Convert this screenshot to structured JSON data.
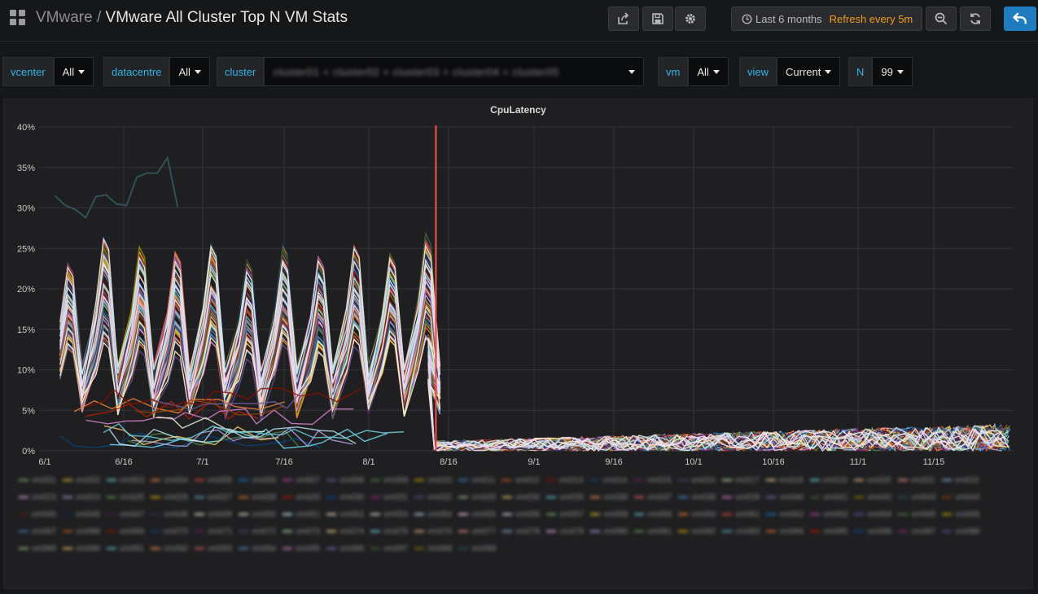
{
  "header": {
    "breadcrumb_folder": "VMware",
    "separator": " / ",
    "dashboard_title": "VMware All Cluster Top N VM Stats",
    "time_range": "Last 6 months",
    "refresh": "Refresh every 5m",
    "icons": [
      "share-icon",
      "save-icon",
      "settings-icon",
      "clock-icon",
      "zoom-out-icon",
      "refresh-icon",
      "back-icon"
    ]
  },
  "variables": [
    {
      "label": "vcenter",
      "value": "All"
    },
    {
      "label": "datacentre",
      "value": "All"
    },
    {
      "label": "cluster",
      "value": "cluster01 + cluster02 + cluster03 + cluster04 + cluster05"
    },
    {
      "label": "vm",
      "value": "All"
    },
    {
      "label": "view",
      "value": "Current"
    },
    {
      "label": "N",
      "value": "99"
    }
  ],
  "panel": {
    "title": "CpuLatency"
  },
  "chart_data": {
    "type": "line",
    "title": "CpuLatency",
    "y_ticks": [
      "0%",
      "5%",
      "10%",
      "15%",
      "20%",
      "25%",
      "30%",
      "35%",
      "40%"
    ],
    "ylim": [
      0,
      40
    ],
    "x_ticks": [
      "6/1",
      "6/16",
      "7/1",
      "7/16",
      "8/1",
      "8/16",
      "9/1",
      "9/16",
      "10/1",
      "10/16",
      "11/1",
      "11/15"
    ],
    "annotation": {
      "x": "8/17",
      "color": "#e84c4c"
    },
    "grid": true,
    "legend_position": "bottom",
    "series_note": "Approximately 99 VM series; names are blurred in the screenshot",
    "dominant_series": {
      "x": [
        "6/3",
        "6/4",
        "6/5",
        "6/6",
        "6/7",
        "6/8",
        "6/9",
        "6/10",
        "6/11",
        "6/12",
        "6/13",
        "6/14",
        "6/15",
        "6/16",
        "6/17",
        "6/18",
        "6/19",
        "6/20",
        "6/21",
        "6/22",
        "6/23",
        "6/24",
        "6/25",
        "6/26",
        "6/27",
        "6/28",
        "6/29",
        "6/30",
        "7/1",
        "7/2",
        "7/3",
        "7/4",
        "7/5",
        "7/6",
        "7/7",
        "7/8",
        "7/9",
        "7/10",
        "7/11",
        "7/12",
        "7/13",
        "7/14",
        "7/15",
        "7/16",
        "7/17",
        "7/18",
        "7/19",
        "7/20",
        "7/21",
        "7/22",
        "7/23",
        "7/24",
        "7/25",
        "7/26",
        "7/27",
        "7/28",
        "7/29",
        "7/30",
        "7/31",
        "8/1",
        "8/2",
        "8/3",
        "8/4",
        "8/5",
        "8/6",
        "8/7",
        "8/8",
        "8/9",
        "8/10",
        "8/11",
        "8/12",
        "8/13",
        "8/14",
        "8/15",
        "8/16",
        "8/17"
      ],
      "peaks_percent": [
        22,
        25,
        24,
        23,
        24,
        22,
        24,
        23,
        24,
        23,
        25,
        23
      ],
      "troughs_percent": [
        10,
        10,
        10,
        10,
        10,
        10,
        10,
        10,
        10,
        10,
        10
      ],
      "after_annotation_range_percent": [
        0,
        3
      ]
    },
    "outlier_series": {
      "x": [
        "6/3",
        "6/5",
        "6/7",
        "6/9",
        "6/11",
        "6/13",
        "6/15",
        "6/17",
        "6/19",
        "6/21",
        "6/23",
        "6/25",
        "6/27"
      ],
      "values": [
        31.5,
        30.3,
        29.8,
        28.8,
        31.4,
        31.6,
        30.5,
        30.3,
        33.8,
        34.3,
        34.3,
        36.2,
        30.1
      ]
    }
  },
  "legend_entries": [
    "vm001",
    "vm002",
    "vm003",
    "vm004",
    "vm005",
    "vm006",
    "vm007",
    "vm008",
    "vm009",
    "vm010",
    "vm011",
    "vm012",
    "vm013",
    "vm014",
    "vm015",
    "vm016",
    "vm017",
    "vm018",
    "vm019",
    "vm020",
    "vm021",
    "vm022",
    "vm023",
    "vm024",
    "vm025",
    "vm026",
    "vm027",
    "vm028",
    "vm029",
    "vm030",
    "vm031",
    "vm032",
    "vm033",
    "vm034",
    "vm035",
    "vm036",
    "vm037",
    "vm038",
    "vm039",
    "vm040",
    "vm041",
    "vm042",
    "vm043",
    "vm044",
    "vm045",
    "vm046",
    "vm047",
    "vm048",
    "vm049",
    "vm050",
    "vm051",
    "vm052",
    "vm053",
    "vm054",
    "vm055",
    "vm056",
    "vm057",
    "vm058",
    "vm059",
    "vm060",
    "vm061",
    "vm062",
    "vm063",
    "vm064",
    "vm065",
    "vm066",
    "vm067",
    "vm068",
    "vm069",
    "vm070",
    "vm071",
    "vm072",
    "vm073",
    "vm074",
    "vm075",
    "vm076",
    "vm077",
    "vm078",
    "vm079",
    "vm080",
    "vm081",
    "vm082",
    "vm083",
    "vm084",
    "vm085",
    "vm086",
    "vm087",
    "vm088",
    "vm089",
    "vm090",
    "vm091",
    "vm092",
    "vm093",
    "vm094",
    "vm095",
    "vm096",
    "vm097",
    "vm098",
    "vm099"
  ],
  "colors": {
    "background": "#161719",
    "panel": "#1f1f21",
    "accent_blue": "#33b5e5",
    "refresh_orange": "#f19b1b",
    "primary_button": "#1f7cc1",
    "annotation_red": "#e84c4c",
    "palette": [
      "#7eb26d",
      "#eab839",
      "#6ed0e0",
      "#ef843c",
      "#e24d42",
      "#1f78c1",
      "#ba43a9",
      "#705da0",
      "#508642",
      "#cca300",
      "#447ebc",
      "#c15c17",
      "#890f02",
      "#0a437c",
      "#6d1f62",
      "#584477",
      "#b7dbab",
      "#f4d598",
      "#70dbed",
      "#f9ba8f",
      "#f29191",
      "#82b5d8",
      "#e5a8e2",
      "#aea2e0",
      "#629e51",
      "#e5ac0e",
      "#64b0c8",
      "#e0752d",
      "#bf1b00",
      "#0a50a1",
      "#962d82",
      "#614d93",
      "#9ac48a",
      "#f2c96d",
      "#65c5db",
      "#f9934e",
      "#ea6460",
      "#5195ce",
      "#d683ce",
      "#806eb7",
      "#3f6833",
      "#967302",
      "#2f575e",
      "#99440a",
      "#58140c",
      "#052b51",
      "#511749",
      "#3f2b5b",
      "#e0f9d7",
      "#fceaca",
      "#cffaff",
      "#f9e2d2",
      "#fce2de",
      "#badff4",
      "#f9d9f9",
      "#dedaf7"
    ]
  }
}
